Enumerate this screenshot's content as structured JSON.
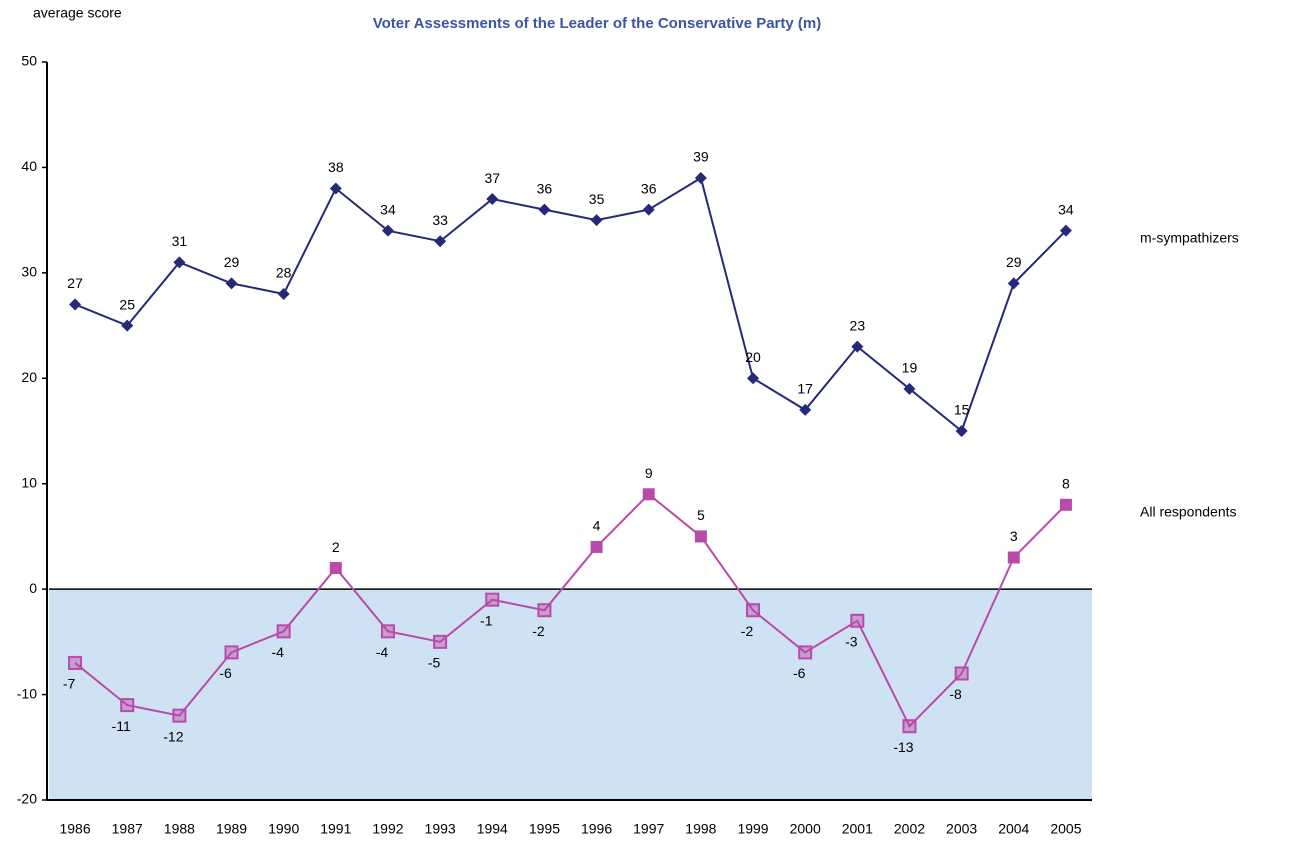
{
  "chart_data": {
    "type": "line",
    "title": "Voter Assessments of the Leader of the Conservative Party (m)",
    "y_label": "average score",
    "categories": [
      "1986",
      "1987",
      "1988",
      "1989",
      "1990",
      "1991",
      "1992",
      "1993",
      "1994",
      "1995",
      "1996",
      "1997",
      "1998",
      "1999",
      "2000",
      "2001",
      "2002",
      "2003",
      "2004",
      "2005"
    ],
    "series": [
      {
        "name": "m-sympathizers",
        "color": "#252a78",
        "marker": "diamond",
        "values": [
          27,
          25,
          31,
          29,
          28,
          38,
          34,
          33,
          37,
          36,
          35,
          36,
          39,
          20,
          17,
          23,
          19,
          15,
          29,
          34
        ]
      },
      {
        "name": "All respondents",
        "color": "#b84aa8",
        "marker": "square",
        "values": [
          -7,
          -11,
          -12,
          -6,
          -4,
          2,
          -4,
          -5,
          -1,
          -2,
          4,
          9,
          5,
          -2,
          -6,
          -3,
          -13,
          -8,
          3,
          8
        ]
      }
    ],
    "ylim": [
      -20,
      50
    ],
    "yticks": [
      -20,
      -10,
      0,
      10,
      20,
      30,
      40,
      50
    ],
    "negative_fill": "#cfe2f3"
  }
}
